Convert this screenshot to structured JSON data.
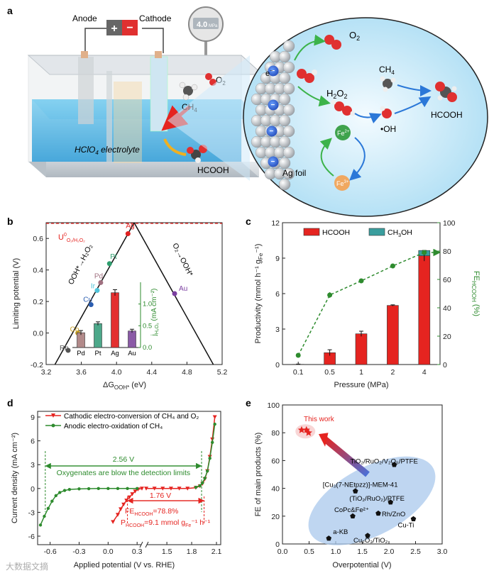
{
  "panel_labels": {
    "a": "a",
    "b": "b",
    "c": "c",
    "d": "d",
    "e": "e"
  },
  "panel_a": {
    "anode": "Anode",
    "cathode": "Cathode",
    "gauge": "4.0",
    "gauge_unit": "MPa",
    "o2": "O",
    "o2_sub": "2",
    "ch4": "CH",
    "ch4_sub": "4",
    "electrolyte_pre": "HClO",
    "electrolyte_sub": "4",
    "electrolyte_post": " electrolyte",
    "hcooh": "HCOOH",
    "ag_foil": "Ag foil",
    "electron": "e",
    "minus": "−",
    "h2o2": "H",
    "h2o2_sub1": "2",
    "h2o2_mid": "O",
    "h2o2_sub2": "2",
    "oh": "•OH",
    "fe2": "Fe",
    "fe2_sup": "2+",
    "fe3": "Fe",
    "fe3_sup": "3+"
  },
  "chart_data": [
    {
      "id": "b",
      "type": "line",
      "xlabel_pre": "ΔG",
      "xlabel_sub": "OOH*",
      "xlabel_post": " (eV)",
      "ylabel": "Limiting potential (V)",
      "xlim": [
        3.2,
        5.2
      ],
      "ylim": [
        -0.2,
        0.7
      ],
      "x_ticks": [
        "3.2",
        "3.6",
        "4.0",
        "4.4",
        "4.8",
        "5.2"
      ],
      "y_ticks": [
        "-0.2",
        "0.0",
        "0.2",
        "0.4",
        "0.6"
      ],
      "volcano_apex": [
        4.2,
        0.7
      ],
      "volcano_left": [
        3.3,
        -0.2
      ],
      "volcano_right": [
        5.1,
        -0.2
      ],
      "equilibrium_label": "U",
      "equilibrium_sup": "0",
      "equilibrium_sub": "O₂/H₂O₂",
      "equilibrium_value": 0.7,
      "left_branch_label": "OOH*→H₂O₂",
      "right_branch_label": "O₂→OOH*",
      "points": [
        {
          "name": "Rh",
          "x": 3.45,
          "y": -0.11,
          "color": "#555555"
        },
        {
          "name": "Co",
          "x": 3.56,
          "y": 0.0,
          "color": "#c9a227"
        },
        {
          "name": "Cu",
          "x": 3.71,
          "y": 0.18,
          "color": "#2a5db0"
        },
        {
          "name": "Ir",
          "x": 3.78,
          "y": 0.27,
          "color": "#4fc3d9"
        },
        {
          "name": "Pd",
          "x": 3.82,
          "y": 0.32,
          "color": "#a07080"
        },
        {
          "name": "Pt",
          "x": 3.92,
          "y": 0.44,
          "color": "#2e9e6e"
        },
        {
          "name": "Ag",
          "x": 4.13,
          "y": 0.63,
          "color": "#e02020"
        },
        {
          "name": "Au",
          "x": 4.66,
          "y": 0.25,
          "color": "#7b3fa0"
        }
      ],
      "inset": {
        "type": "bar",
        "categories": [
          "Pd",
          "Pt",
          "Ag",
          "Au"
        ],
        "values": [
          0.34,
          0.55,
          1.26,
          0.38
        ],
        "errors": [
          0.05,
          0.04,
          0.07,
          0.04
        ],
        "colors": [
          "#b28a8a",
          "#4da88a",
          "#e33030",
          "#8a5aa6"
        ],
        "ylabel_pre": "j",
        "ylabel_sub": "H₂O₂",
        "ylabel_post": " (mA cm⁻²)",
        "ylim": [
          0,
          1.5
        ],
        "y_ticks": [
          "0.0",
          "0.5",
          "1.0"
        ]
      }
    },
    {
      "id": "c",
      "type": "bar",
      "categories": [
        "0.1",
        "0.5",
        "1",
        "2",
        "4"
      ],
      "series": [
        {
          "name": "HCOOH",
          "values": [
            0.02,
            1.0,
            2.6,
            5.0,
            9.2
          ],
          "errors": [
            0.02,
            0.25,
            0.22,
            0.05,
            0.45
          ],
          "color": "#e52420"
        },
        {
          "name": "CH3OH",
          "legend_pre": "CH",
          "legend_sub": "3",
          "legend_post": "OH",
          "values": [
            0,
            0,
            0,
            0,
            0.45
          ],
          "color": "#3a9e9e"
        }
      ],
      "fe_series": {
        "name": "FE HCOOH",
        "values": [
          6.5,
          49,
          59,
          69.5,
          79
        ],
        "errors": [
          1,
          2,
          1,
          1,
          1.5
        ],
        "color": "#2e8b2e"
      },
      "xlabel": "Pressure (MPa)",
      "ylabel_left": "Productivity (mmol h⁻¹ g",
      "ylabel_left_sub": "Fe",
      "ylabel_left_post": "⁻¹)",
      "ylabel_right_pre": "FE",
      "ylabel_right_sub": "HCOOH",
      "ylabel_right_post": " (%)",
      "ylim_left": [
        0,
        12
      ],
      "ylim_right": [
        0,
        100
      ],
      "left_ticks": [
        "0",
        "3",
        "6",
        "9",
        "12"
      ],
      "right_ticks": [
        "0",
        "20",
        "40",
        "60",
        "80",
        "100"
      ]
    },
    {
      "id": "d",
      "type": "line",
      "xlabel": "Applied potential (V vs. RHE)",
      "ylabel": "Current density (mA cm⁻²)",
      "ylim": [
        -6,
        9
      ],
      "y_ticks": [
        "-6",
        "-3",
        "0",
        "3",
        "6",
        "9"
      ],
      "x_ticks_left": [
        "-0.6",
        "-0.3",
        "0.0",
        "0.3"
      ],
      "x_ticks_right": [
        "1.5",
        "1.8",
        "2.1"
      ],
      "x_ranges": [
        [
          -0.7,
          0.35
        ],
        [
          1.25,
          2.1
        ]
      ],
      "series": [
        {
          "name": "Cathodic electro-conversion of CH₄ and O₂",
          "color": "#e52420",
          "marker": "triangle",
          "x": [
            0.05,
            0.1,
            0.13,
            0.16,
            0.19,
            0.22,
            0.25,
            0.28,
            0.31,
            0.35,
            1.25,
            1.35,
            1.45,
            1.55,
            1.65,
            1.75,
            1.85,
            1.9,
            1.93,
            1.96,
            1.99,
            2.02,
            2.05,
            2.08
          ],
          "y": [
            -4.2,
            -3.3,
            -2.6,
            -2.0,
            -1.5,
            -1.1,
            -0.7,
            -0.35,
            -0.1,
            0,
            0,
            0,
            0,
            0,
            0,
            0,
            0.1,
            0.3,
            0.6,
            1.2,
            2.2,
            4.0,
            6.2,
            9.0
          ]
        },
        {
          "name": "Anodic electro-oxidation of CH₄",
          "color": "#2e8b2e",
          "marker": "circle",
          "x": [
            -0.7,
            -0.66,
            -0.62,
            -0.58,
            -0.54,
            -0.5,
            -0.45,
            -0.4,
            -0.3,
            -0.2,
            -0.1,
            0.0,
            0.1,
            0.2,
            0.3,
            1.85,
            1.9,
            1.93,
            1.96,
            1.99,
            2.02,
            2.05,
            2.08
          ],
          "y": [
            -4.6,
            -3.5,
            -2.5,
            -1.6,
            -0.9,
            -0.5,
            -0.25,
            -0.12,
            -0.05,
            -0.02,
            0,
            0,
            0,
            0,
            0,
            0.15,
            0.35,
            0.7,
            1.3,
            2.2,
            3.8,
            5.8,
            8.1
          ]
        }
      ],
      "annotations": {
        "span_green": "2.56 V",
        "note_green": "Oxygenates are blow the detection limits",
        "span_red": "1.76 V",
        "fe_pre": "FE",
        "fe_sub": "HCOOH",
        "fe_post": "=78.8%",
        "p_pre": "P",
        "p_sub": "HCOOH",
        "p_post": "=9.1 mmol g",
        "p_sub2": "Fe",
        "p_post2": "⁻¹ h⁻¹"
      }
    },
    {
      "id": "e",
      "type": "scatter",
      "xlabel": "Overpotential (V)",
      "ylabel": "FE of main products (%)",
      "xlim": [
        0,
        3
      ],
      "ylim": [
        0,
        100
      ],
      "x_ticks": [
        "0.0",
        "0.5",
        "1.0",
        "1.5",
        "2.0",
        "2.5",
        "3.0"
      ],
      "y_ticks": [
        "0",
        "20",
        "40",
        "60",
        "80",
        "100"
      ],
      "this_work_label": "This work",
      "this_work_points": [
        [
          0.36,
          82
        ],
        [
          0.45,
          82
        ],
        [
          0.49,
          80
        ]
      ],
      "points": [
        {
          "label": "TiO₂/RuO₂/V₂O₅/PTFE",
          "x": 2.1,
          "y": 57
        },
        {
          "label": "[Cu₃(7-NEtpzz)]-MEM-41",
          "x": 1.37,
          "y": 38
        },
        {
          "label": "(TiO₂/RuO₂)/PTFE",
          "x": 2.03,
          "y": 30
        },
        {
          "label": "CoPc&Fe²⁺",
          "x": 1.32,
          "y": 20
        },
        {
          "label": "Rh/ZnO",
          "x": 1.8,
          "y": 22
        },
        {
          "label": "Cu-Ti",
          "x": 2.46,
          "y": 18
        },
        {
          "label": "a-KB",
          "x": 0.87,
          "y": 4
        },
        {
          "label": "Cu₂O₃/TiO₂",
          "x": 1.6,
          "y": 6
        }
      ]
    }
  ],
  "watermark": "大数据文摘"
}
